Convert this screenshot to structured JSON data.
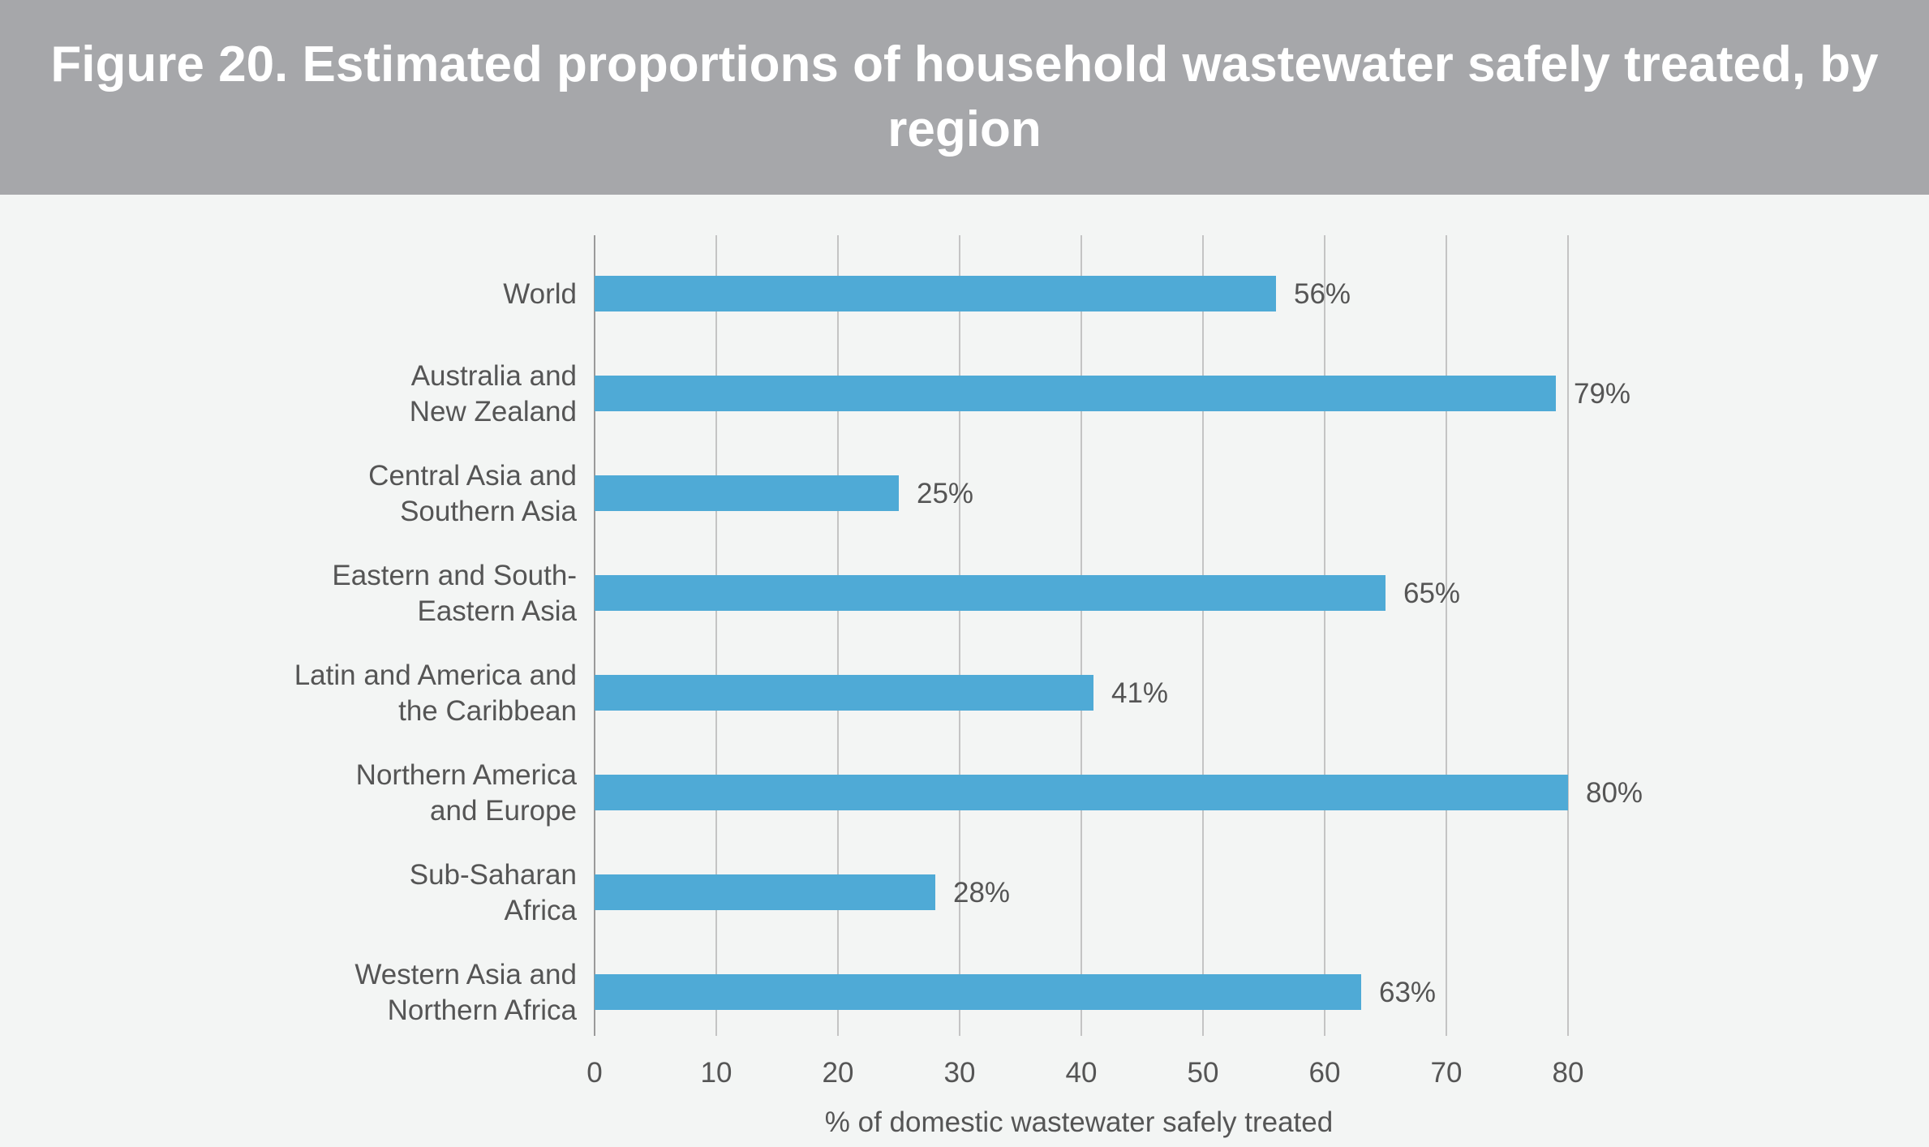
{
  "figure": {
    "title": "Figure 20. Estimated proportions of household wastewater safely treated, by region"
  },
  "chart_data": {
    "type": "bar",
    "orientation": "horizontal",
    "title": "Figure 20. Estimated proportions of household wastewater safely treated, by region",
    "xlabel": "% of domestic wastewater safely treated",
    "ylabel": "",
    "xlim": [
      0,
      80
    ],
    "xticks": [
      0,
      10,
      20,
      30,
      40,
      50,
      60,
      70,
      80
    ],
    "grid": "vertical",
    "bar_color": "#4faad6",
    "categories": [
      [
        "World"
      ],
      [
        "Australia and",
        "New Zealand"
      ],
      [
        "Central Asia and",
        "Southern Asia"
      ],
      [
        "Eastern and South-",
        "Eastern Asia"
      ],
      [
        "Latin and America and",
        "the Caribbean"
      ],
      [
        "Northern America",
        "and Europe"
      ],
      [
        "Sub-Saharan",
        "Africa"
      ],
      [
        "Western Asia and",
        "Northern Africa"
      ]
    ],
    "values": [
      56,
      79,
      25,
      65,
      41,
      80,
      28,
      63
    ],
    "data_labels": [
      "56%",
      "79%",
      "25%",
      "65%",
      "41%",
      "80%",
      "28%",
      "63%"
    ]
  }
}
